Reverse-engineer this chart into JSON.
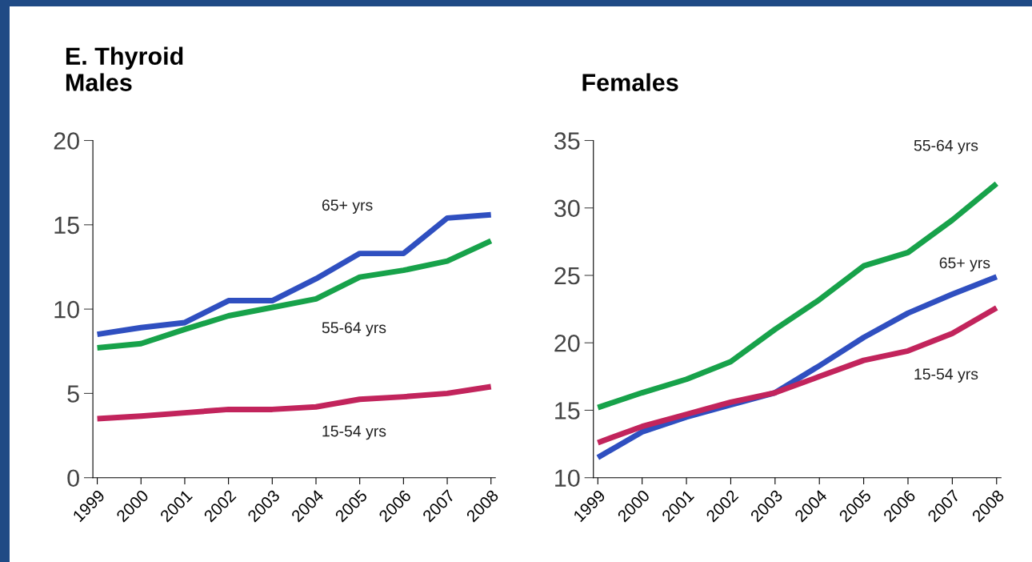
{
  "chart_data": [
    {
      "type": "line",
      "title": "E. Thyroid\nMales",
      "categories": [
        "1999",
        "2000",
        "2001",
        "2002",
        "2003",
        "2004",
        "2005",
        "2006",
        "2007",
        "2008"
      ],
      "ylim": [
        0,
        20
      ],
      "yticks": [
        0,
        5,
        10,
        15,
        20
      ],
      "grid": false,
      "series": [
        {
          "name": "65+ yrs",
          "color": "#2f4fc0",
          "values": [
            8.5,
            8.9,
            9.2,
            10.5,
            10.5,
            11.8,
            13.3,
            13.3,
            15.4,
            15.6
          ]
        },
        {
          "name": "55-64 yrs",
          "color": "#17a24a",
          "values": [
            7.7,
            7.95,
            8.8,
            9.6,
            10.1,
            10.6,
            11.9,
            12.3,
            12.85,
            14.05
          ]
        },
        {
          "name": "15-54 yrs",
          "color": "#c2245c",
          "values": [
            3.5,
            3.65,
            3.85,
            4.05,
            4.05,
            4.2,
            4.65,
            4.8,
            5.0,
            5.4
          ]
        }
      ]
    },
    {
      "type": "line",
      "title": "Females",
      "categories": [
        "1999",
        "2000",
        "2001",
        "2002",
        "2003",
        "2004",
        "2005",
        "2006",
        "2007",
        "2008"
      ],
      "ylim": [
        10,
        35
      ],
      "yticks": [
        10,
        15,
        20,
        25,
        30,
        35
      ],
      "grid": false,
      "series": [
        {
          "name": "55-64 yrs",
          "color": "#17a24a",
          "values": [
            15.2,
            16.3,
            17.3,
            18.6,
            21,
            23.2,
            25.7,
            26.7,
            29.1,
            31.8
          ]
        },
        {
          "name": "65+ yrs",
          "color": "#2f4fc0",
          "values": [
            11.5,
            13.4,
            14.5,
            15.4,
            16.3,
            18.3,
            20.4,
            22.2,
            23.6,
            24.9
          ]
        },
        {
          "name": "15-54 yrs",
          "color": "#c2245c",
          "values": [
            12.6,
            13.8,
            14.7,
            15.6,
            16.3,
            17.5,
            18.7,
            19.4,
            20.7,
            22.6
          ]
        }
      ]
    }
  ]
}
